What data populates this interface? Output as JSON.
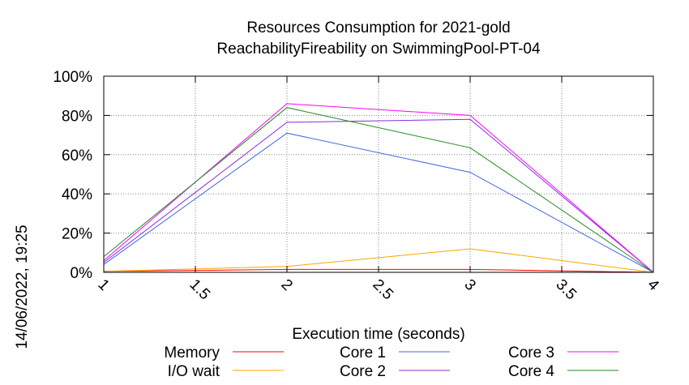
{
  "chart_data": {
    "type": "line",
    "title_line1": "Resources Consumption for 2021-gold",
    "title_line2": "ReachabilityFireability on SwimmingPool-PT-04",
    "xlabel": "Execution time (seconds)",
    "ylabel": "",
    "side_label": "14/06/2022, 19:25",
    "xlim": [
      1,
      4
    ],
    "ylim": [
      0,
      100
    ],
    "x_ticks": [
      "1",
      "1.5",
      "2",
      "2.5",
      "3",
      "3.5",
      "4"
    ],
    "x_tick_values": [
      1,
      1.5,
      2,
      2.5,
      3,
      3.5,
      4
    ],
    "y_ticks": [
      "0%",
      "20%",
      "40%",
      "60%",
      "80%",
      "100%"
    ],
    "y_tick_values": [
      0,
      20,
      40,
      60,
      80,
      100
    ],
    "grid": true,
    "legend_position": "bottom",
    "series": [
      {
        "name": "Memory",
        "color": "#ff0000",
        "x": [
          1,
          2,
          3,
          4
        ],
        "y": [
          0.5,
          1.5,
          1.5,
          0
        ]
      },
      {
        "name": "I/O wait",
        "color": "#ffa500",
        "x": [
          1,
          2,
          3,
          4
        ],
        "y": [
          0.5,
          3,
          12,
          0
        ]
      },
      {
        "name": "Core 1",
        "color": "#4169e1",
        "x": [
          1,
          2,
          3,
          4
        ],
        "y": [
          4,
          71,
          51,
          0
        ]
      },
      {
        "name": "Core 2",
        "color": "#8a2be2",
        "x": [
          1,
          2,
          3,
          4
        ],
        "y": [
          5,
          76.5,
          78,
          0
        ]
      },
      {
        "name": "Core 3",
        "color": "#ff00ff",
        "x": [
          1,
          2,
          3,
          4
        ],
        "y": [
          6,
          86,
          80,
          0
        ]
      },
      {
        "name": "Core 4",
        "color": "#228b22",
        "x": [
          1,
          2,
          3,
          4
        ],
        "y": [
          8,
          84,
          63.5,
          0
        ]
      }
    ]
  }
}
